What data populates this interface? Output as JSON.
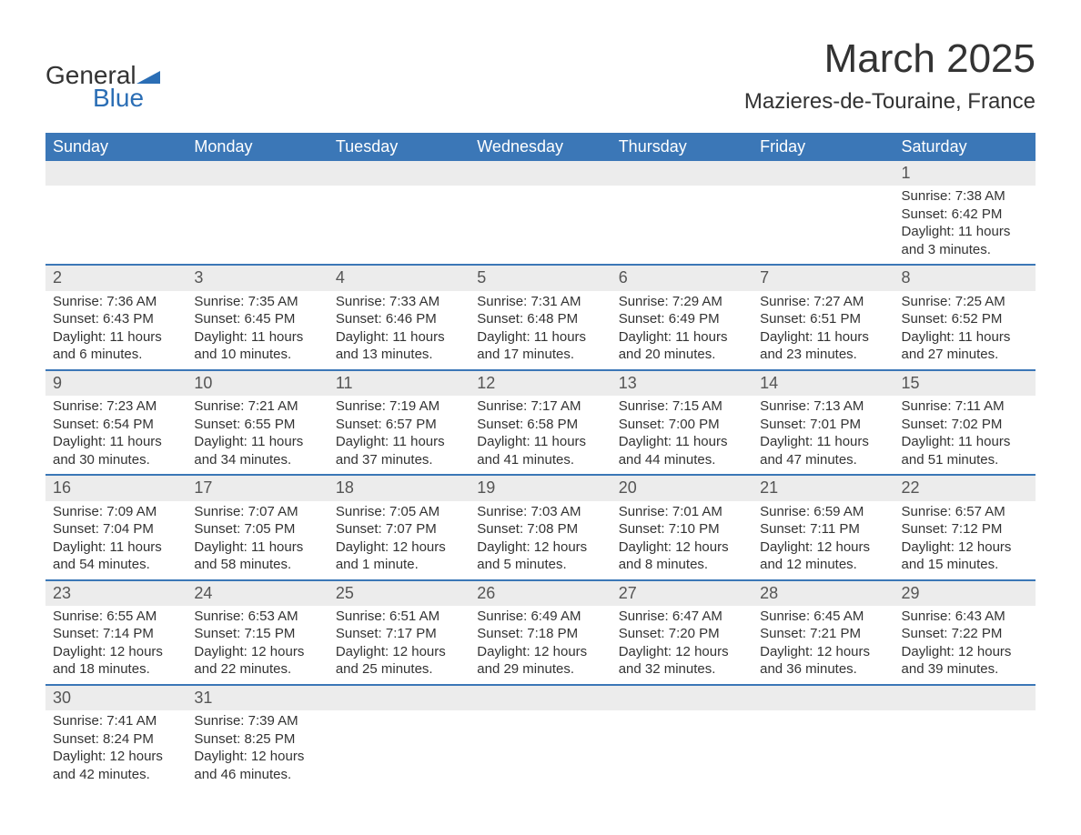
{
  "logo": {
    "word1": "General",
    "word2": "Blue",
    "triangle_color": "#2b6eb5",
    "text_color_main": "#333333",
    "text_color_accent": "#2b6eb5"
  },
  "title": {
    "month_year": "March 2025",
    "location": "Mazieres-de-Touraine, France"
  },
  "colors": {
    "header_bg": "#3b77b7",
    "header_text": "#ffffff",
    "daynum_bg": "#ececec",
    "row_divider": "#3b77b7",
    "text": "#333333",
    "background": "#ffffff"
  },
  "typography": {
    "month_fontsize": 44,
    "location_fontsize": 24,
    "weekday_fontsize": 18,
    "daynum_fontsize": 18,
    "body_fontsize": 15,
    "font_family": "Arial"
  },
  "weekdays": [
    "Sunday",
    "Monday",
    "Tuesday",
    "Wednesday",
    "Thursday",
    "Friday",
    "Saturday"
  ],
  "weeks": [
    [
      null,
      null,
      null,
      null,
      null,
      null,
      {
        "num": "1",
        "sunrise": "Sunrise: 7:38 AM",
        "sunset": "Sunset: 6:42 PM",
        "daylight1": "Daylight: 11 hours",
        "daylight2": "and 3 minutes."
      }
    ],
    [
      {
        "num": "2",
        "sunrise": "Sunrise: 7:36 AM",
        "sunset": "Sunset: 6:43 PM",
        "daylight1": "Daylight: 11 hours",
        "daylight2": "and 6 minutes."
      },
      {
        "num": "3",
        "sunrise": "Sunrise: 7:35 AM",
        "sunset": "Sunset: 6:45 PM",
        "daylight1": "Daylight: 11 hours",
        "daylight2": "and 10 minutes."
      },
      {
        "num": "4",
        "sunrise": "Sunrise: 7:33 AM",
        "sunset": "Sunset: 6:46 PM",
        "daylight1": "Daylight: 11 hours",
        "daylight2": "and 13 minutes."
      },
      {
        "num": "5",
        "sunrise": "Sunrise: 7:31 AM",
        "sunset": "Sunset: 6:48 PM",
        "daylight1": "Daylight: 11 hours",
        "daylight2": "and 17 minutes."
      },
      {
        "num": "6",
        "sunrise": "Sunrise: 7:29 AM",
        "sunset": "Sunset: 6:49 PM",
        "daylight1": "Daylight: 11 hours",
        "daylight2": "and 20 minutes."
      },
      {
        "num": "7",
        "sunrise": "Sunrise: 7:27 AM",
        "sunset": "Sunset: 6:51 PM",
        "daylight1": "Daylight: 11 hours",
        "daylight2": "and 23 minutes."
      },
      {
        "num": "8",
        "sunrise": "Sunrise: 7:25 AM",
        "sunset": "Sunset: 6:52 PM",
        "daylight1": "Daylight: 11 hours",
        "daylight2": "and 27 minutes."
      }
    ],
    [
      {
        "num": "9",
        "sunrise": "Sunrise: 7:23 AM",
        "sunset": "Sunset: 6:54 PM",
        "daylight1": "Daylight: 11 hours",
        "daylight2": "and 30 minutes."
      },
      {
        "num": "10",
        "sunrise": "Sunrise: 7:21 AM",
        "sunset": "Sunset: 6:55 PM",
        "daylight1": "Daylight: 11 hours",
        "daylight2": "and 34 minutes."
      },
      {
        "num": "11",
        "sunrise": "Sunrise: 7:19 AM",
        "sunset": "Sunset: 6:57 PM",
        "daylight1": "Daylight: 11 hours",
        "daylight2": "and 37 minutes."
      },
      {
        "num": "12",
        "sunrise": "Sunrise: 7:17 AM",
        "sunset": "Sunset: 6:58 PM",
        "daylight1": "Daylight: 11 hours",
        "daylight2": "and 41 minutes."
      },
      {
        "num": "13",
        "sunrise": "Sunrise: 7:15 AM",
        "sunset": "Sunset: 7:00 PM",
        "daylight1": "Daylight: 11 hours",
        "daylight2": "and 44 minutes."
      },
      {
        "num": "14",
        "sunrise": "Sunrise: 7:13 AM",
        "sunset": "Sunset: 7:01 PM",
        "daylight1": "Daylight: 11 hours",
        "daylight2": "and 47 minutes."
      },
      {
        "num": "15",
        "sunrise": "Sunrise: 7:11 AM",
        "sunset": "Sunset: 7:02 PM",
        "daylight1": "Daylight: 11 hours",
        "daylight2": "and 51 minutes."
      }
    ],
    [
      {
        "num": "16",
        "sunrise": "Sunrise: 7:09 AM",
        "sunset": "Sunset: 7:04 PM",
        "daylight1": "Daylight: 11 hours",
        "daylight2": "and 54 minutes."
      },
      {
        "num": "17",
        "sunrise": "Sunrise: 7:07 AM",
        "sunset": "Sunset: 7:05 PM",
        "daylight1": "Daylight: 11 hours",
        "daylight2": "and 58 minutes."
      },
      {
        "num": "18",
        "sunrise": "Sunrise: 7:05 AM",
        "sunset": "Sunset: 7:07 PM",
        "daylight1": "Daylight: 12 hours",
        "daylight2": "and 1 minute."
      },
      {
        "num": "19",
        "sunrise": "Sunrise: 7:03 AM",
        "sunset": "Sunset: 7:08 PM",
        "daylight1": "Daylight: 12 hours",
        "daylight2": "and 5 minutes."
      },
      {
        "num": "20",
        "sunrise": "Sunrise: 7:01 AM",
        "sunset": "Sunset: 7:10 PM",
        "daylight1": "Daylight: 12 hours",
        "daylight2": "and 8 minutes."
      },
      {
        "num": "21",
        "sunrise": "Sunrise: 6:59 AM",
        "sunset": "Sunset: 7:11 PM",
        "daylight1": "Daylight: 12 hours",
        "daylight2": "and 12 minutes."
      },
      {
        "num": "22",
        "sunrise": "Sunrise: 6:57 AM",
        "sunset": "Sunset: 7:12 PM",
        "daylight1": "Daylight: 12 hours",
        "daylight2": "and 15 minutes."
      }
    ],
    [
      {
        "num": "23",
        "sunrise": "Sunrise: 6:55 AM",
        "sunset": "Sunset: 7:14 PM",
        "daylight1": "Daylight: 12 hours",
        "daylight2": "and 18 minutes."
      },
      {
        "num": "24",
        "sunrise": "Sunrise: 6:53 AM",
        "sunset": "Sunset: 7:15 PM",
        "daylight1": "Daylight: 12 hours",
        "daylight2": "and 22 minutes."
      },
      {
        "num": "25",
        "sunrise": "Sunrise: 6:51 AM",
        "sunset": "Sunset: 7:17 PM",
        "daylight1": "Daylight: 12 hours",
        "daylight2": "and 25 minutes."
      },
      {
        "num": "26",
        "sunrise": "Sunrise: 6:49 AM",
        "sunset": "Sunset: 7:18 PM",
        "daylight1": "Daylight: 12 hours",
        "daylight2": "and 29 minutes."
      },
      {
        "num": "27",
        "sunrise": "Sunrise: 6:47 AM",
        "sunset": "Sunset: 7:20 PM",
        "daylight1": "Daylight: 12 hours",
        "daylight2": "and 32 minutes."
      },
      {
        "num": "28",
        "sunrise": "Sunrise: 6:45 AM",
        "sunset": "Sunset: 7:21 PM",
        "daylight1": "Daylight: 12 hours",
        "daylight2": "and 36 minutes."
      },
      {
        "num": "29",
        "sunrise": "Sunrise: 6:43 AM",
        "sunset": "Sunset: 7:22 PM",
        "daylight1": "Daylight: 12 hours",
        "daylight2": "and 39 minutes."
      }
    ],
    [
      {
        "num": "30",
        "sunrise": "Sunrise: 7:41 AM",
        "sunset": "Sunset: 8:24 PM",
        "daylight1": "Daylight: 12 hours",
        "daylight2": "and 42 minutes."
      },
      {
        "num": "31",
        "sunrise": "Sunrise: 7:39 AM",
        "sunset": "Sunset: 8:25 PM",
        "daylight1": "Daylight: 12 hours",
        "daylight2": "and 46 minutes."
      },
      null,
      null,
      null,
      null,
      null
    ]
  ]
}
